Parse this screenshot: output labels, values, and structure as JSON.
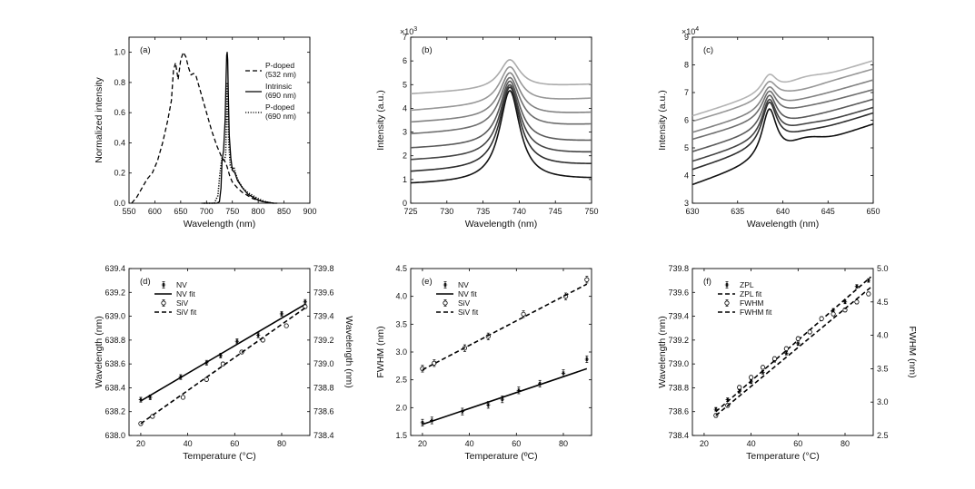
{
  "chart_data": [
    {
      "id": "a",
      "type": "line",
      "panel_label": "(a)",
      "xlabel": "Wavelength (nm)",
      "ylabel": "Normalized intensity",
      "xlim": [
        550,
        900
      ],
      "ylim": [
        0,
        1.1
      ],
      "xticks": [
        550,
        600,
        650,
        700,
        750,
        800,
        850,
        900
      ],
      "yticks": [
        0.0,
        0.2,
        0.4,
        0.6,
        0.8,
        1.0
      ],
      "ytick_labels": [
        "0.0",
        "0.2",
        "0.4",
        "0.6",
        "0.8",
        "1.0"
      ],
      "legend": [
        {
          "lines": [
            "P-doped",
            "(532 nm)"
          ],
          "style": "dashed"
        },
        {
          "lines": [
            "Intrinsic",
            "(690 nm)"
          ],
          "style": "solid"
        },
        {
          "lines": [
            "P-doped",
            "(690 nm)"
          ],
          "style": "dotted"
        }
      ],
      "series": [
        {
          "name": "P-doped (532 nm)",
          "style": "dashed",
          "x": [
            555,
            565,
            575,
            585,
            595,
            605,
            615,
            625,
            632,
            636,
            640,
            645,
            650,
            655,
            660,
            665,
            670,
            675,
            680,
            690,
            700,
            710,
            720,
            730,
            737,
            740,
            745,
            750,
            760,
            770,
            780,
            790,
            800,
            810,
            820,
            830,
            840
          ],
          "y": [
            0.0,
            0.04,
            0.1,
            0.16,
            0.2,
            0.28,
            0.4,
            0.55,
            0.68,
            0.88,
            0.93,
            0.82,
            0.95,
            1.0,
            0.97,
            0.9,
            0.85,
            0.86,
            0.84,
            0.72,
            0.6,
            0.48,
            0.38,
            0.3,
            0.27,
            0.24,
            0.18,
            0.14,
            0.1,
            0.07,
            0.05,
            0.03,
            0.02,
            0.01,
            0.005,
            0.0,
            0.0
          ]
        },
        {
          "name": "Intrinsic (690 nm)",
          "style": "solid",
          "x": [
            690,
            720,
            725,
            728,
            730,
            733,
            736,
            738,
            739,
            740,
            741,
            742,
            744,
            747,
            750,
            755,
            760,
            770,
            780,
            790,
            800,
            810,
            820,
            830
          ],
          "y": [
            0.0,
            0.0,
            0.01,
            0.1,
            0.28,
            0.35,
            0.55,
            0.85,
            0.98,
            1.0,
            0.95,
            0.75,
            0.45,
            0.3,
            0.22,
            0.2,
            0.15,
            0.1,
            0.06,
            0.04,
            0.02,
            0.01,
            0.005,
            0.0
          ]
        },
        {
          "name": "P-doped (690 nm)",
          "style": "dotted",
          "x": [
            695,
            715,
            722,
            726,
            730,
            734,
            737,
            739,
            740,
            741,
            743,
            746,
            750,
            753,
            756,
            760,
            770,
            780,
            790,
            800,
            810,
            820,
            830
          ],
          "y": [
            0.0,
            0.0,
            0.05,
            0.2,
            0.3,
            0.28,
            0.32,
            0.6,
            0.8,
            0.65,
            0.4,
            0.25,
            0.22,
            0.24,
            0.2,
            0.16,
            0.1,
            0.07,
            0.05,
            0.03,
            0.015,
            0.005,
            0.0
          ]
        }
      ]
    },
    {
      "id": "b",
      "type": "line",
      "panel_label": "(b)",
      "xlabel": "Wavelength (nm)",
      "ylabel": "Intensity (a.u.)",
      "exponent_label": "×10",
      "exponent_power": "3",
      "xlim": [
        725,
        750
      ],
      "ylim": [
        0,
        7
      ],
      "xticks": [
        725,
        730,
        735,
        740,
        745,
        750
      ],
      "yticks": [
        0,
        1,
        2,
        3,
        4,
        5,
        6,
        7
      ],
      "peak_center": 738.7,
      "peak_width": 1.7,
      "curves": [
        {
          "base_left": 0.8,
          "base_right": 1.0,
          "peak": 4.75,
          "color": "#111111"
        },
        {
          "base_left": 1.3,
          "base_right": 1.6,
          "peak": 4.9,
          "color": "#2e2e2e"
        },
        {
          "base_left": 1.8,
          "base_right": 2.1,
          "peak": 5.0,
          "color": "#444444"
        },
        {
          "base_left": 2.3,
          "base_right": 2.6,
          "peak": 5.15,
          "color": "#5a5a5a"
        },
        {
          "base_left": 2.9,
          "base_right": 3.3,
          "peak": 5.3,
          "color": "#6e6e6e"
        },
        {
          "base_left": 3.4,
          "base_right": 3.8,
          "peak": 5.5,
          "color": "#828282"
        },
        {
          "base_left": 3.9,
          "base_right": 4.4,
          "peak": 5.75,
          "color": "#979797"
        },
        {
          "base_left": 4.6,
          "base_right": 5.0,
          "peak": 6.05,
          "color": "#ababab"
        }
      ]
    },
    {
      "id": "c",
      "type": "line",
      "panel_label": "(c)",
      "xlabel": "Wavelength (nm)",
      "ylabel": "Intensity (a.u.)",
      "exponent_label": "×10",
      "exponent_power": "4",
      "xlim": [
        630,
        650
      ],
      "ylim": [
        3,
        9
      ],
      "xticks": [
        630,
        635,
        640,
        645,
        650
      ],
      "yticks": [
        3,
        4,
        5,
        6,
        7,
        8,
        9
      ],
      "peak_center": 638.5,
      "peak_width": 1.0,
      "curves": [
        {
          "base_left": 3.65,
          "dip": 5.3,
          "base_right": 5.85,
          "peak": 6.4,
          "color": "#111111"
        },
        {
          "base_left": 4.2,
          "dip": 5.55,
          "base_right": 6.25,
          "peak": 6.65,
          "color": "#2e2e2e"
        },
        {
          "base_left": 4.5,
          "dip": 5.8,
          "base_right": 6.45,
          "peak": 6.75,
          "color": "#444444"
        },
        {
          "base_left": 4.85,
          "dip": 6.05,
          "base_right": 6.75,
          "peak": 6.9,
          "color": "#5a5a5a"
        },
        {
          "base_left": 5.3,
          "dip": 6.45,
          "base_right": 7.1,
          "peak": 7.05,
          "color": "#6e6e6e"
        },
        {
          "base_left": 5.55,
          "dip": 6.75,
          "base_right": 7.45,
          "peak": 7.2,
          "color": "#828282"
        },
        {
          "base_left": 5.95,
          "dip": 7.1,
          "base_right": 7.85,
          "peak": 7.4,
          "color": "#979797"
        },
        {
          "base_left": 6.15,
          "dip": 7.55,
          "base_right": 8.15,
          "peak": 7.65,
          "color": "#b4b4b4"
        }
      ]
    },
    {
      "id": "d",
      "type": "scatter",
      "panel_label": "(d)",
      "xlabel": "Temperature (°C)",
      "ylabel": "Wavelength (nm)",
      "ylabel_right": "Wavelength (nm)",
      "xlim": [
        15,
        92
      ],
      "ylim": [
        638.0,
        639.4
      ],
      "ylim_right": [
        738.4,
        739.8
      ],
      "xticks": [
        20,
        40,
        60,
        80
      ],
      "yticks": [
        638.0,
        638.2,
        638.4,
        638.6,
        638.8,
        639.0,
        639.2,
        639.4
      ],
      "ytick_labels": [
        "638.0",
        "638.2",
        "638.4",
        "638.6",
        "638.8",
        "639.0",
        "639.2",
        "639.4"
      ],
      "yticks_right": [
        738.4,
        738.6,
        738.8,
        739.0,
        739.2,
        739.4,
        739.6,
        739.8
      ],
      "ytick_labels_right": [
        "738.4",
        "738.6",
        "738.8",
        "739.0",
        "739.2",
        "739.4",
        "739.6",
        "739.8"
      ],
      "legend": [
        "NV",
        "NV fit",
        "SiV",
        "SiV fit"
      ],
      "series": [
        {
          "name": "NV",
          "marker": "star",
          "axis": "left",
          "x": [
            20,
            24,
            37,
            48,
            54,
            61,
            70,
            80,
            90
          ],
          "y": [
            638.3,
            638.32,
            638.49,
            638.61,
            638.67,
            638.79,
            638.84,
            639.02,
            639.12
          ],
          "err": 0.02
        },
        {
          "name": "NV fit",
          "style": "solid",
          "axis": "left",
          "x": [
            20,
            90
          ],
          "y": [
            638.29,
            639.1
          ]
        },
        {
          "name": "SiV",
          "marker": "circle",
          "axis": "right",
          "x": [
            20,
            25,
            38,
            48,
            55,
            63,
            72,
            82,
            90
          ],
          "y": [
            738.5,
            738.56,
            738.72,
            738.87,
            739.0,
            739.1,
            739.2,
            739.32,
            739.48
          ],
          "err": 0.015
        },
        {
          "name": "SiV fit",
          "style": "dashed",
          "axis": "right",
          "x": [
            20,
            90
          ],
          "y": [
            738.5,
            739.47
          ]
        }
      ]
    },
    {
      "id": "e",
      "type": "scatter",
      "panel_label": "(e)",
      "xlabel": "Temperature (ºC)",
      "ylabel": "FWHM (nm)",
      "xlim": [
        15,
        92
      ],
      "ylim": [
        1.5,
        4.5
      ],
      "xticks": [
        20,
        40,
        60,
        80
      ],
      "yticks": [
        1.5,
        2.0,
        2.5,
        3.0,
        3.5,
        4.0,
        4.5
      ],
      "ytick_labels": [
        "1.5",
        "2.0",
        "2.5",
        "3.0",
        "3.5",
        "4.0",
        "4.5"
      ],
      "legend": [
        "NV",
        "NV fit",
        "SiV",
        "SiV fit"
      ],
      "series": [
        {
          "name": "NV",
          "marker": "star",
          "x": [
            20,
            24,
            37,
            48,
            54,
            61,
            70,
            80,
            90
          ],
          "y": [
            1.73,
            1.77,
            1.93,
            2.05,
            2.15,
            2.31,
            2.43,
            2.62,
            2.87
          ],
          "err": 0.06
        },
        {
          "name": "NV fit",
          "style": "solid",
          "x": [
            20,
            90
          ],
          "y": [
            1.7,
            2.7
          ]
        },
        {
          "name": "SiV",
          "marker": "circle",
          "x": [
            20,
            25,
            38,
            48,
            63,
            81,
            90
          ],
          "y": [
            2.7,
            2.8,
            3.07,
            3.28,
            3.68,
            4.0,
            4.3
          ],
          "err": 0.06
        },
        {
          "name": "SiV fit",
          "style": "dashed",
          "x": [
            20,
            90
          ],
          "y": [
            2.68,
            4.22
          ]
        }
      ]
    },
    {
      "id": "f",
      "type": "scatter",
      "panel_label": "(f)",
      "xlabel": "Temperature (°C)",
      "ylabel": "Wavelength (nm)",
      "ylabel_right": "FWHM (nm)",
      "xlim": [
        15,
        92
      ],
      "ylim": [
        738.4,
        739.8
      ],
      "ylim_right": [
        2.5,
        5.0
      ],
      "xticks": [
        20,
        40,
        60,
        80
      ],
      "yticks": [
        738.4,
        738.6,
        738.8,
        739.0,
        739.2,
        739.4,
        739.6,
        739.8
      ],
      "ytick_labels": [
        "738.4",
        "738.6",
        "738.8",
        "739.0",
        "739.2",
        "739.4",
        "739.6",
        "739.8"
      ],
      "yticks_right": [
        2.5,
        3.0,
        3.5,
        4.0,
        4.5,
        5.0
      ],
      "ytick_labels_right": [
        "2.5",
        "3.0",
        "3.5",
        "4.0",
        "4.5",
        "5.0"
      ],
      "legend": [
        "ZPL",
        "ZPL fit",
        "FWHM",
        "FWHM fit"
      ],
      "series": [
        {
          "name": "ZPL",
          "marker": "star",
          "axis": "left",
          "x": [
            25,
            30,
            35,
            40,
            45,
            50,
            55,
            60,
            65,
            70,
            75,
            80,
            85,
            90
          ],
          "y": [
            738.62,
            738.7,
            738.77,
            738.85,
            738.93,
            739.03,
            739.09,
            739.17,
            739.27,
            739.38,
            739.45,
            739.52,
            739.65,
            739.7
          ],
          "err": 0.015
        },
        {
          "name": "ZPL fit",
          "style": "dashed",
          "axis": "left",
          "x": [
            25,
            91
          ],
          "y": [
            738.6,
            739.73
          ]
        },
        {
          "name": "FWHM",
          "marker": "circle",
          "axis": "right",
          "x": [
            25,
            30,
            35,
            40,
            45,
            50,
            55,
            60,
            65,
            70,
            75,
            80,
            85,
            90
          ],
          "y": [
            2.8,
            2.95,
            3.22,
            3.37,
            3.52,
            3.65,
            3.8,
            3.95,
            4.05,
            4.25,
            4.32,
            4.38,
            4.5,
            4.62
          ],
          "err": 0.03
        },
        {
          "name": "FWHM fit",
          "style": "dashed",
          "axis": "right",
          "x": [
            25,
            91
          ],
          "y": [
            2.8,
            4.72
          ]
        }
      ]
    }
  ]
}
